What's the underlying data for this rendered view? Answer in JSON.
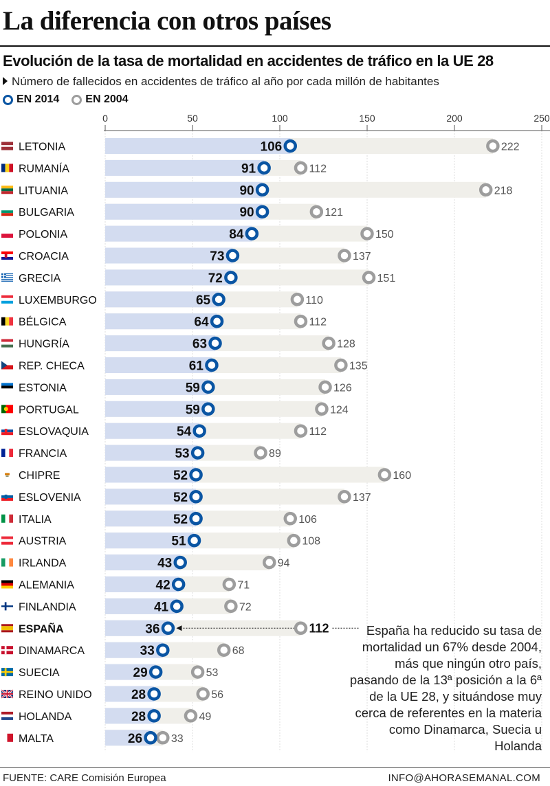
{
  "header": {
    "title": "La diferencia con otros países",
    "subtitle": "Evolución de la tasa de mortalidad en accidentes de tráfico en la UE 28",
    "description": "Número de fallecidos en accidentes de tráfico al año por cada millón de habitantes"
  },
  "legend": {
    "series_2014": "EN 2014",
    "series_2004": "EN 2004"
  },
  "colors": {
    "blue": "#0a55a3",
    "gray": "#9d9d9d",
    "bar_2014": "#d3dcf0",
    "bar_2004": "#f0efea"
  },
  "note": "España ha reducido su tasa de mortalidad un 67% desde 2004, más que ningún otro país, pasando de la 13ª posición a la 6ª de la UE 28, y situándose muy cerca de referentes en la materia como Dinamarca, Suecia u Holanda",
  "footer": {
    "source": "FUENTE: CARE Comisión Europea",
    "credit": "INFO@AHORASEMANAL.COM"
  },
  "chart_data": {
    "type": "bar",
    "orientation": "horizontal",
    "xlim": [
      0,
      250
    ],
    "x_ticks": [
      0,
      50,
      100,
      150,
      200,
      250
    ],
    "grid": true,
    "highlight": "ESPAÑA",
    "categories": [
      "LETONIA",
      "RUMANÍA",
      "LITUANIA",
      "BULGARIA",
      "POLONIA",
      "CROACIA",
      "GRECIA",
      "LUXEMBURGO",
      "BÉLGICA",
      "HUNGRÍA",
      "REP. CHECA",
      "ESTONIA",
      "PORTUGAL",
      "ESLOVAQUIA",
      "FRANCIA",
      "CHIPRE",
      "ESLOVENIA",
      "ITALIA",
      "AUSTRIA",
      "IRLANDA",
      "ALEMANIA",
      "FINLANDIA",
      "ESPAÑA",
      "DINAMARCA",
      "SUECIA",
      "REINO UNIDO",
      "HOLANDA",
      "MALTA"
    ],
    "series": [
      {
        "name": "EN 2014",
        "values": [
          106,
          91,
          90,
          90,
          84,
          73,
          72,
          65,
          64,
          63,
          61,
          59,
          59,
          54,
          53,
          52,
          52,
          52,
          51,
          43,
          42,
          41,
          36,
          33,
          29,
          28,
          28,
          26
        ]
      },
      {
        "name": "EN 2004",
        "values": [
          222,
          112,
          218,
          121,
          150,
          137,
          151,
          110,
          112,
          128,
          135,
          126,
          124,
          112,
          89,
          160,
          137,
          106,
          108,
          94,
          71,
          72,
          112,
          68,
          53,
          56,
          49,
          33
        ]
      }
    ],
    "flags": [
      {
        "type": "h",
        "colors": [
          "#9e3039",
          "#ffffff",
          "#9e3039"
        ],
        "ratio": [
          2,
          1,
          2
        ]
      },
      {
        "type": "v",
        "colors": [
          "#002b7f",
          "#fcd116",
          "#ce1126"
        ]
      },
      {
        "type": "h",
        "colors": [
          "#fdb913",
          "#006a44",
          "#c1272d"
        ]
      },
      {
        "type": "h",
        "colors": [
          "#ffffff",
          "#00966e",
          "#d62612"
        ]
      },
      {
        "type": "h",
        "colors": [
          "#ffffff",
          "#dc143c"
        ]
      },
      {
        "type": "h",
        "colors": [
          "#ff0000",
          "#ffffff",
          "#171796"
        ],
        "emblem": "#c8102e"
      },
      {
        "type": "greece"
      },
      {
        "type": "h",
        "colors": [
          "#ed2939",
          "#ffffff",
          "#00a1de"
        ]
      },
      {
        "type": "v",
        "colors": [
          "#000000",
          "#fdda24",
          "#ef3340"
        ]
      },
      {
        "type": "h",
        "colors": [
          "#ce2939",
          "#ffffff",
          "#477050"
        ]
      },
      {
        "type": "czech"
      },
      {
        "type": "h",
        "colors": [
          "#0072ce",
          "#000000",
          "#ffffff"
        ]
      },
      {
        "type": "portugal"
      },
      {
        "type": "h",
        "colors": [
          "#ffffff",
          "#0b4ea2",
          "#ee1c25"
        ],
        "emblem": "#ee1c25"
      },
      {
        "type": "v",
        "colors": [
          "#002395",
          "#ffffff",
          "#ed2939"
        ]
      },
      {
        "type": "cyprus"
      },
      {
        "type": "h",
        "colors": [
          "#ffffff",
          "#005da4",
          "#ed1c24"
        ],
        "emblem": "#005da4"
      },
      {
        "type": "v",
        "colors": [
          "#009246",
          "#ffffff",
          "#ce2b37"
        ]
      },
      {
        "type": "h",
        "colors": [
          "#ed2939",
          "#ffffff",
          "#ed2939"
        ]
      },
      {
        "type": "v",
        "colors": [
          "#169b62",
          "#ffffff",
          "#ff883e"
        ]
      },
      {
        "type": "h",
        "colors": [
          "#000000",
          "#dd0000",
          "#ffce00"
        ]
      },
      {
        "type": "nordic",
        "bg": "#ffffff",
        "cross": "#003580"
      },
      {
        "type": "h",
        "colors": [
          "#aa151b",
          "#f1bf00",
          "#aa151b"
        ],
        "ratio": [
          1,
          2,
          1
        ]
      },
      {
        "type": "nordic",
        "bg": "#c8102e",
        "cross": "#ffffff"
      },
      {
        "type": "nordic",
        "bg": "#006aa7",
        "cross": "#fecc00"
      },
      {
        "type": "uk"
      },
      {
        "type": "h",
        "colors": [
          "#ae1c28",
          "#ffffff",
          "#21468b"
        ]
      },
      {
        "type": "v",
        "colors": [
          "#ffffff",
          "#cf142b"
        ]
      }
    ]
  }
}
